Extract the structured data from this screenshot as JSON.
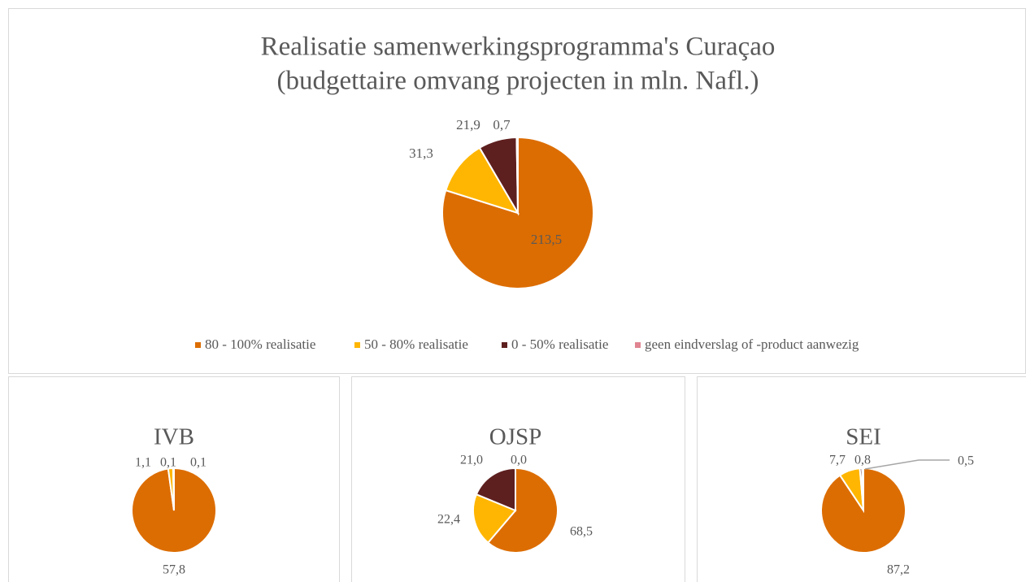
{
  "chart_data": [
    {
      "type": "pie",
      "title": [
        "Realisatie samenwerkingsprogramma's Curaçao",
        "(budgettaire omvang projecten in mln. Nafl.)"
      ],
      "categories": [
        "80 - 100% realisatie",
        "50 - 80% realisatie",
        "0 - 50% realisatie",
        "geen eindverslag of -product aanwezig"
      ],
      "values": [
        213.5,
        31.3,
        21.9,
        0.7
      ],
      "value_labels": [
        "213,5",
        "31,3",
        "21,9",
        "0,7"
      ],
      "colors": [
        "#dc6d02",
        "#ffb602",
        "#5e1f1f",
        "#e08591"
      ],
      "legend": "bottom"
    },
    {
      "type": "pie",
      "title": "IVB",
      "values": [
        57.8,
        1.1,
        0.1,
        0.1
      ],
      "value_labels": [
        "57,8",
        "1,1",
        "0,1",
        "0,1"
      ],
      "colors": [
        "#dc6d02",
        "#ffb602",
        "#5e1f1f",
        "#e08591"
      ]
    },
    {
      "type": "pie",
      "title": "OJSP",
      "values": [
        68.5,
        22.4,
        21.0,
        0.0
      ],
      "value_labels": [
        "68,5",
        "22,4",
        "21,0",
        "0,0"
      ],
      "colors": [
        "#dc6d02",
        "#ffb602",
        "#5e1f1f",
        "#e08591"
      ]
    },
    {
      "type": "pie",
      "title": "SEI",
      "values": [
        87.2,
        7.7,
        0.8,
        0.5
      ],
      "value_labels": [
        "87,2",
        "7,7",
        "0,8",
        "0,5"
      ],
      "colors": [
        "#dc6d02",
        "#ffb602",
        "#5e1f1f",
        "#e08591"
      ]
    }
  ]
}
